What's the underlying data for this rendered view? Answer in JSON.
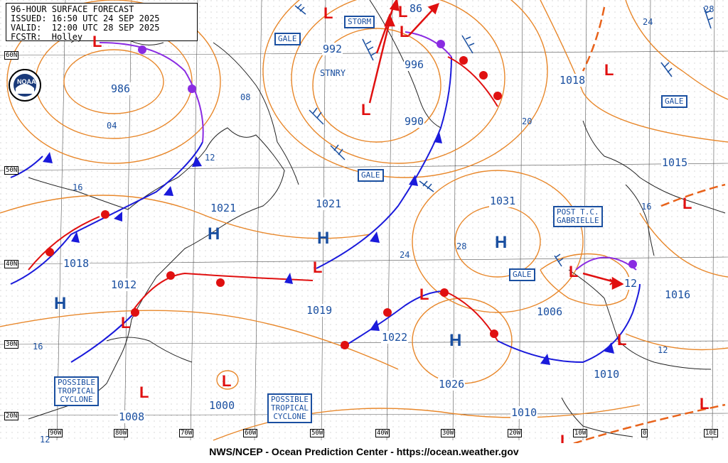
{
  "header": {
    "line1": "96-HOUR SURFACE FORECAST",
    "line2": "ISSUED: 16:50 UTC 24 SEP 2025",
    "line3": "VALID:  12:00 UTC 28 SEP 2025",
    "line4": "FCSTR:  Holley"
  },
  "footer": "NWS/NCEP - Ocean Prediction Center - https://ocean.weather.gov",
  "logo_text": "NOAA",
  "lat_labels": [
    "60N",
    "50N",
    "40N",
    "30N",
    "20N"
  ],
  "lon_labels": [
    "90W",
    "80W",
    "70W",
    "60W",
    "50W",
    "40W",
    "30W",
    "20W",
    "10W",
    "0",
    "10E"
  ],
  "pressure_labels": {
    "p986": "986",
    "p992": "992",
    "p996": "996",
    "p990": "990",
    "p1018a": "1018",
    "p1015": "1015",
    "p1021a": "1021",
    "p1021b": "1021",
    "p1031": "1031",
    "p1018b": "1018",
    "p1012": "1012",
    "p1019": "1019",
    "p1022": "1022",
    "p1006": "1006",
    "p1016": "1016",
    "p1010a": "1010",
    "p1026": "1026",
    "p1010b": "1010",
    "p1000": "1000",
    "p1008": "1008",
    "p86": "86",
    "p12": "12"
  },
  "isobar_labels": [
    "08",
    "04",
    "12",
    "16",
    "20",
    "24",
    "28",
    "24",
    "28",
    "16",
    "12",
    "16",
    "12"
  ],
  "boxes": {
    "storm": "STORM",
    "gale1": "GALE",
    "gale2": "GALE",
    "gale3": "GALE",
    "gale4": "GALE",
    "stnry": "STNRY",
    "post_tc_1": "POST T.C.",
    "post_tc_2": "GABRIELLE",
    "ptc1_1": "POSSIBLE",
    "ptc1_2": "TROPICAL",
    "ptc1_3": "CYCLONE",
    "ptc2_1": "POSSIBLE",
    "ptc2_2": "TROPICAL",
    "ptc2_3": "CYCLONE"
  },
  "high_symbol": "H",
  "low_symbol": "L",
  "colors": {
    "isobar": "#e8872a",
    "front_cold": "#1a1adb",
    "front_warm": "#e01010",
    "occluded": "#8a2be2",
    "text": "#1a4fa0",
    "grid": "#555555"
  }
}
